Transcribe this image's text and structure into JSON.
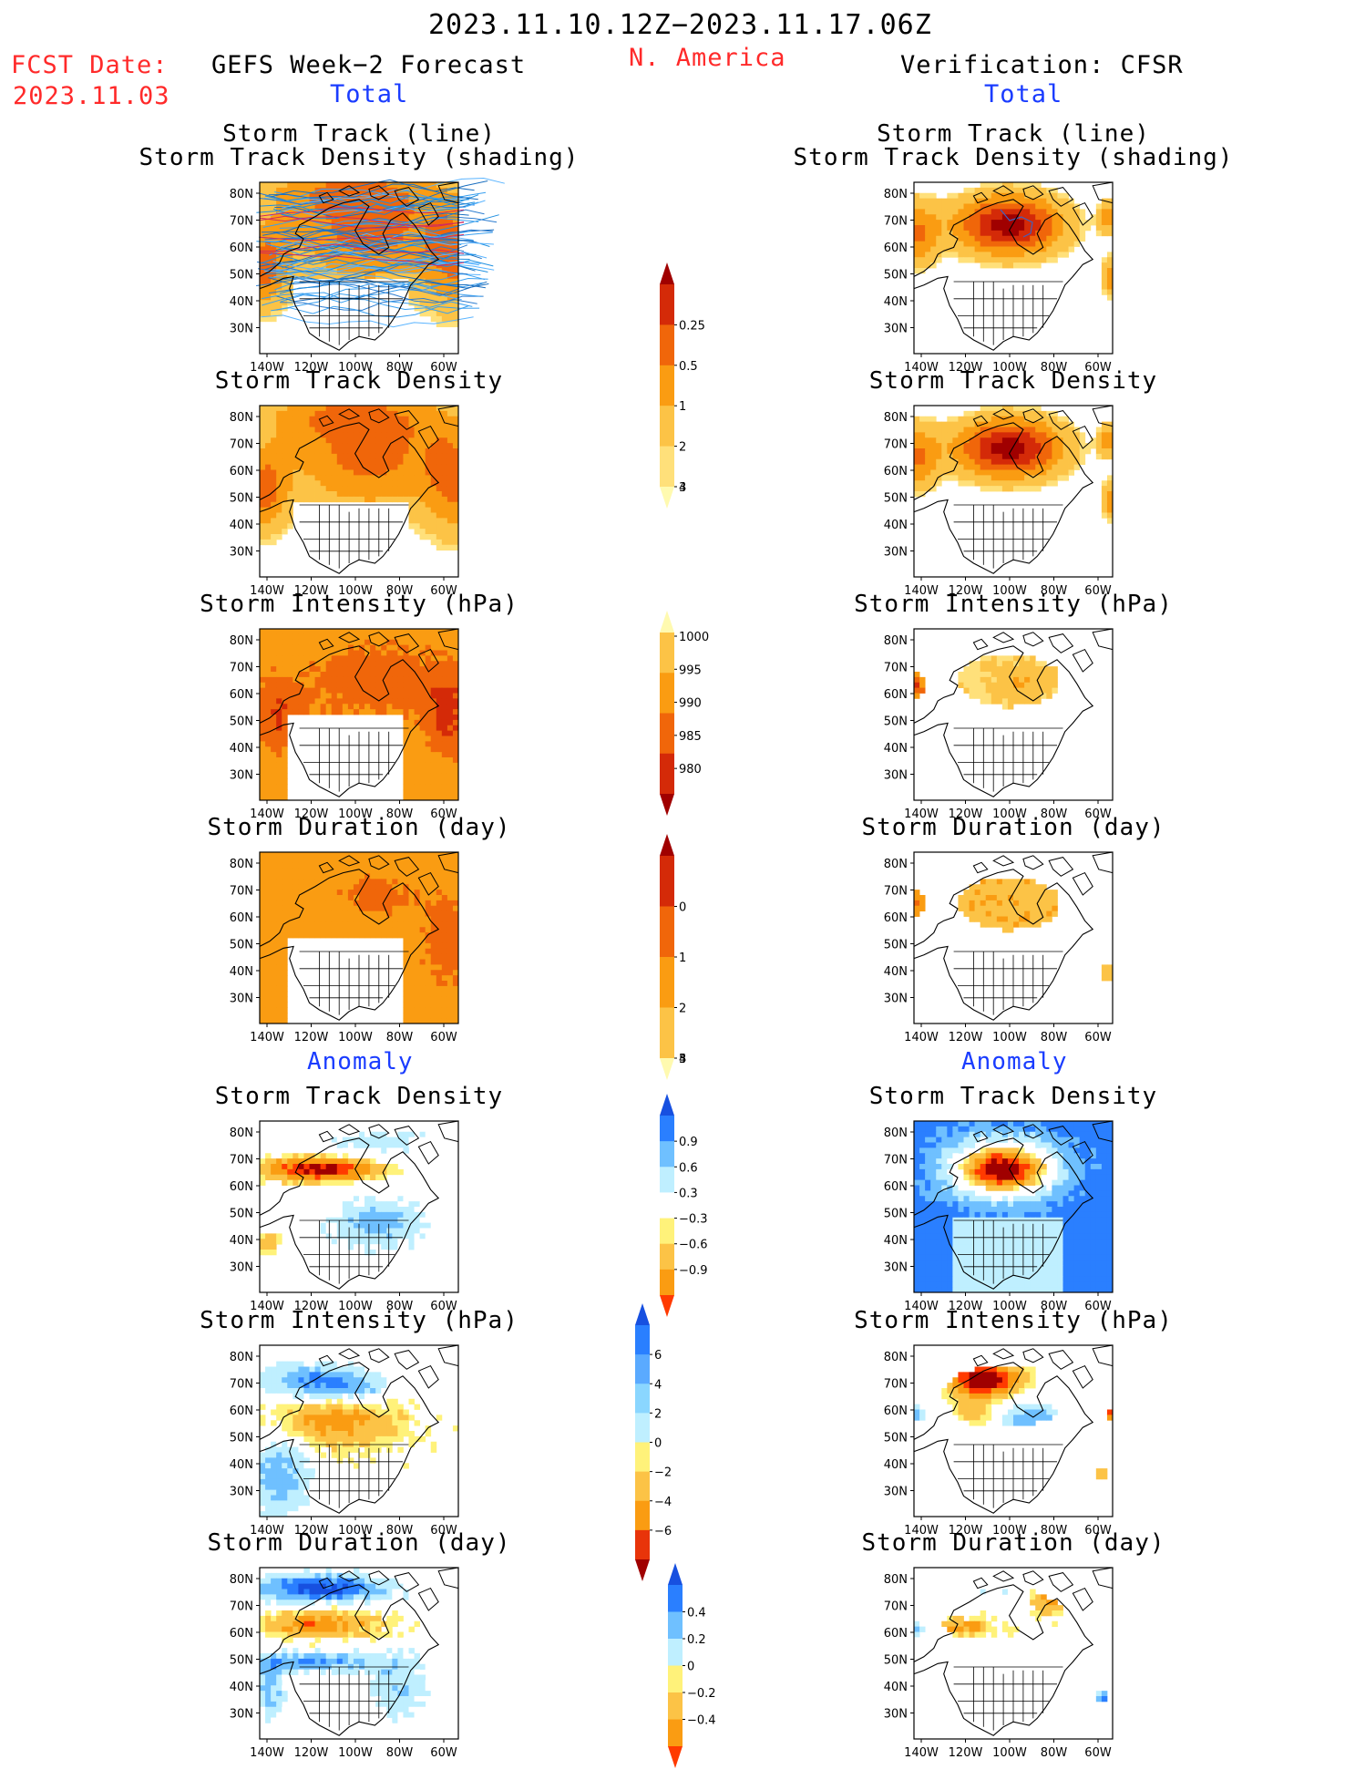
{
  "header": {
    "title": "2023.11.10.12Z−2023.11.17.06Z",
    "fcst_label": "FCST Date:",
    "fcst_date": "2023.11.03",
    "left_title": "GEFS Week−2 Forecast",
    "center_title": "N. America",
    "right_title": "Verification: CFSR",
    "left_total": "Total",
    "right_total": "Total",
    "left_anomaly": "Anomaly",
    "right_anomaly": "Anomaly"
  },
  "axes": {
    "lat_labels": [
      "80N",
      "70N",
      "60N",
      "50N",
      "40N",
      "30N"
    ],
    "lon_labels": [
      "140W",
      "120W",
      "100W",
      "80W",
      "60W"
    ]
  },
  "panels": {
    "forecast": [
      {
        "title1": "Storm Track (line)",
        "title2": "Storm Track Density (shading)",
        "field": "track_lines"
      },
      {
        "title1": "Storm Track Density",
        "title2": "",
        "field": "density"
      },
      {
        "title1": "Storm Intensity (hPa)",
        "title2": "",
        "field": "intensity"
      },
      {
        "title1": "Storm Duration (day)",
        "title2": "",
        "field": "duration"
      },
      {
        "title1": "Storm Track Density",
        "title2": "",
        "field": "anom_density"
      },
      {
        "title1": "Storm Intensity (hPa)",
        "title2": "",
        "field": "anom_intensity"
      },
      {
        "title1": "Storm Duration (day)",
        "title2": "",
        "field": "anom_duration"
      }
    ],
    "verification": [
      {
        "title1": "Storm Track (line)",
        "title2": "Storm Track Density (shading)",
        "field": "v_track"
      },
      {
        "title1": "Storm Track Density",
        "title2": "",
        "field": "v_density"
      },
      {
        "title1": "Storm Intensity (hPa)",
        "title2": "",
        "field": "v_intensity"
      },
      {
        "title1": "Storm Duration (day)",
        "title2": "",
        "field": "v_duration"
      },
      {
        "title1": "Storm Track Density",
        "title2": "",
        "field": "v_anom_density"
      },
      {
        "title1": "Storm Intensity (hPa)",
        "title2": "",
        "field": "v_anom_intensity"
      },
      {
        "title1": "Storm Duration (day)",
        "title2": "",
        "field": "v_anom_duration"
      }
    ]
  },
  "colorbars": [
    {
      "name": "density",
      "labels": [
        "0.25",
        "0.5",
        "1",
        "2",
        "3",
        "4"
      ],
      "colors": [
        "#fffab0",
        "#ffe07a",
        "#fcc346",
        "#fa9c12",
        "#f0660a",
        "#d42a08",
        "#a00000"
      ]
    },
    {
      "name": "intensity",
      "labels": [
        "1000",
        "995",
        "990",
        "985",
        "980"
      ],
      "colors": [
        "#fffab0",
        "#fcc346",
        "#fa9c12",
        "#f0660a",
        "#d42a08",
        "#a00000"
      ]
    },
    {
      "name": "duration",
      "labels": [
        "0",
        "1",
        "2",
        "3",
        "4",
        "5"
      ],
      "colors": [
        "#fffab0",
        "#fcc346",
        "#fa9c12",
        "#f0660a",
        "#d42a08",
        "#a00000"
      ]
    },
    {
      "name": "anom_density",
      "labels": [
        "0.9",
        "0.6",
        "0.3",
        "−0.3",
        "−0.6",
        "−0.9"
      ],
      "colors": [
        "#ff3a00",
        "#fa9c12",
        "#fcc346",
        "#fff27a",
        "#ffffff",
        "#bfefff",
        "#6fc0ff",
        "#2a7fff",
        "#1750e0"
      ]
    },
    {
      "name": "anom_intensity",
      "labels": [
        "6",
        "4",
        "2",
        "0",
        "−2",
        "−4",
        "−6"
      ],
      "colors": [
        "#a00000",
        "#e8340a",
        "#fa9c12",
        "#fcc346",
        "#fff27a",
        "#bfefff",
        "#8ad6ff",
        "#5aaaff",
        "#2a7fff",
        "#1750e0"
      ]
    },
    {
      "name": "anom_duration",
      "labels": [
        "0.4",
        "0.2",
        "0",
        "−0.2",
        "−0.4"
      ],
      "colors": [
        "#ff3a00",
        "#fa9c12",
        "#fcc346",
        "#fff27a",
        "#bfefff",
        "#6fc0ff",
        "#2a7fff",
        "#1750e0"
      ]
    }
  ]
}
